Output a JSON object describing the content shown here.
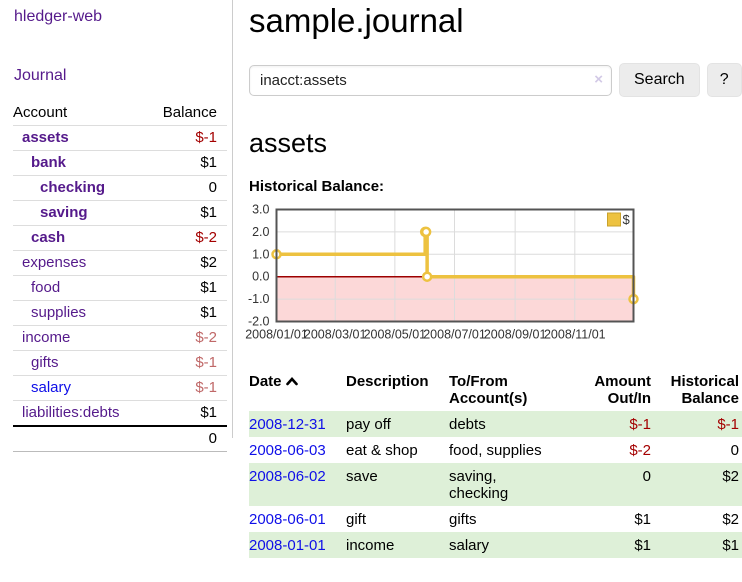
{
  "app": {
    "brand": "hledger-web"
  },
  "sidebar": {
    "journal_link": "Journal",
    "accounts": {
      "headers": {
        "account": "Account",
        "balance": "Balance"
      },
      "rows": [
        {
          "name": "assets",
          "balance": "$-1"
        },
        {
          "name": "bank",
          "balance": "$1"
        },
        {
          "name": "checking",
          "balance": "0"
        },
        {
          "name": "saving",
          "balance": "$1"
        },
        {
          "name": "cash",
          "balance": "$-2"
        },
        {
          "name": "expenses",
          "balance": "$2"
        },
        {
          "name": "food",
          "balance": "$1"
        },
        {
          "name": "supplies",
          "balance": "$1"
        },
        {
          "name": "income",
          "balance": "$-2"
        },
        {
          "name": "gifts",
          "balance": "$-1"
        },
        {
          "name": "salary",
          "balance": "$-1"
        },
        {
          "name": "liabilities:debts",
          "balance": "$1"
        }
      ],
      "total": "0"
    }
  },
  "main": {
    "title": "sample.journal",
    "search": {
      "query": "inacct:assets",
      "clear": "×",
      "button": "Search",
      "help": "?"
    },
    "account_heading": "assets"
  },
  "chart_data": {
    "type": "line",
    "title": "Historical Balance:",
    "step": true,
    "series": [
      {
        "name": "$",
        "color": "#edc240",
        "points": [
          {
            "date": "2008-01-01",
            "value": 1
          },
          {
            "date": "2008-06-01",
            "value": 2
          },
          {
            "date": "2008-06-02",
            "value": 2
          },
          {
            "date": "2008-06-03",
            "value": 0
          },
          {
            "date": "2008-12-31",
            "value": -1
          }
        ]
      }
    ],
    "x_range": [
      "2008-01-01",
      "2008-12-31"
    ],
    "y_range": [
      -2,
      3
    ],
    "x_ticks": [
      {
        "label": "2008/01/01",
        "date": "2008-01-01"
      },
      {
        "label": "2008/03/01",
        "date": "2008-03-01"
      },
      {
        "label": "2008/05/01",
        "date": "2008-05-01"
      },
      {
        "label": "2008/07/01",
        "date": "2008-07-01"
      },
      {
        "label": "2008/09/01",
        "date": "2008-09-01"
      },
      {
        "label": "2008/11/01",
        "date": "2008-11-01"
      }
    ],
    "y_ticks": [
      {
        "label": "3.0",
        "value": 3
      },
      {
        "label": "2.0",
        "value": 2
      },
      {
        "label": "1.0",
        "value": 1
      },
      {
        "label": "0.0",
        "value": 0
      },
      {
        "label": "-1.0",
        "value": -1
      },
      {
        "label": "-2.0",
        "value": -2
      }
    ],
    "grid": true,
    "legend_position": "top-right",
    "colors": {
      "negative_region": "#fcd8d8",
      "zero_line": "#9d0000",
      "grid": "#dcdcdc",
      "plot_border": "#545454",
      "marker_fill": "#ffffff"
    }
  },
  "register": {
    "headers": {
      "date": "Date",
      "description": "Description",
      "accounts": "To/From Account(s)",
      "amount": "Amount Out/In",
      "balance": "Historical Balance"
    },
    "rows": [
      {
        "date": "2008-12-31",
        "description": "pay off",
        "accounts": "debts",
        "amount": "$-1",
        "balance": "$-1"
      },
      {
        "date": "2008-06-03",
        "description": "eat & shop",
        "accounts": "food, supplies",
        "amount": "$-2",
        "balance": "0"
      },
      {
        "date": "2008-06-02",
        "description": "save",
        "accounts": "saving, checking",
        "amount": "0",
        "balance": "$2"
      },
      {
        "date": "2008-06-01",
        "description": "gift",
        "accounts": "gifts",
        "amount": "$1",
        "balance": "$2"
      },
      {
        "date": "2008-01-01",
        "description": "income",
        "accounts": "salary",
        "amount": "$1",
        "balance": "$1"
      }
    ]
  }
}
